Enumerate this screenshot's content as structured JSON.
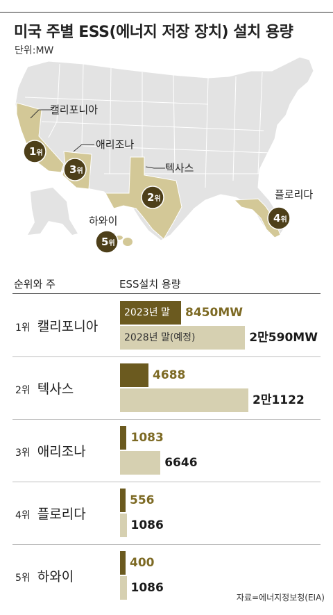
{
  "title": "미국 주별 ESS(에너지 저장 장치) 설치 용량",
  "unit": "단위:MW",
  "map": {
    "states": [
      {
        "name": "캘리포니아",
        "rank_num": "1",
        "rank_suffix": "위"
      },
      {
        "name": "애리조나",
        "rank_num": "3",
        "rank_suffix": "위"
      },
      {
        "name": "텍사스",
        "rank_num": "2",
        "rank_suffix": "위"
      },
      {
        "name": "플로리다",
        "rank_num": "4",
        "rank_suffix": "위"
      },
      {
        "name": "하와이",
        "rank_num": "5",
        "rank_suffix": "위"
      }
    ],
    "highlight_color": "#d3c897",
    "base_color": "#e3e3e3"
  },
  "table_header": {
    "left": "순위와 주",
    "right": "ESS설치 용량"
  },
  "source": "자료=에너지정보청(EIA)",
  "colors": {
    "bar_2023": "#6b5a1f",
    "bar_2028": "#d6d0b1",
    "text_2023": "#7d6a24"
  },
  "chart_data": {
    "type": "bar",
    "orientation": "horizontal",
    "categories": [
      "캘리포니아",
      "텍사스",
      "애리조나",
      "플로리다",
      "하와이"
    ],
    "ranks": [
      "1위",
      "2위",
      "3위",
      "4위",
      "5위"
    ],
    "series": [
      {
        "name": "2023년 말",
        "values": [
          8450,
          4688,
          1083,
          556,
          400
        ],
        "labels": [
          "8450MW",
          "4688",
          "1083",
          "556",
          "400"
        ]
      },
      {
        "name": "2028년 말(예정)",
        "values": [
          20590,
          21122,
          6646,
          1086,
          1086
        ],
        "labels": [
          "2만590MW",
          "2만1122",
          "6646",
          "1086",
          "1086"
        ]
      }
    ]
  }
}
